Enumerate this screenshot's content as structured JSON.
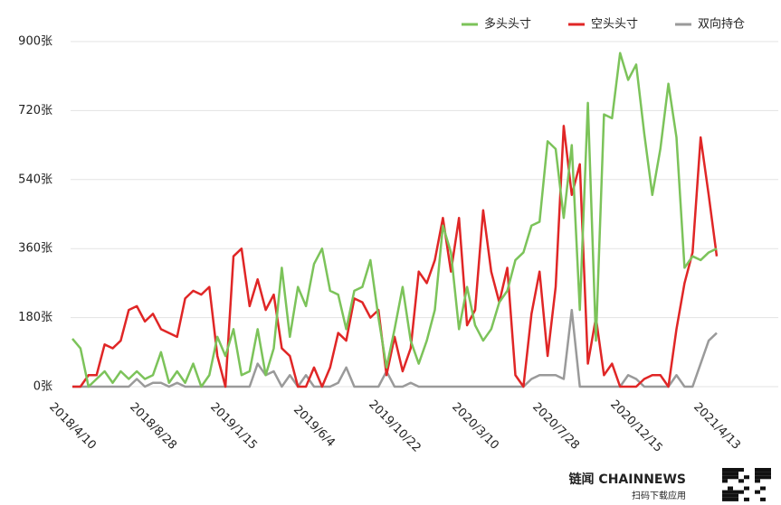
{
  "chart_data": {
    "type": "line",
    "categories": [
      "2018/4/10",
      null,
      null,
      null,
      null,
      null,
      null,
      null,
      null,
      null,
      "2018/8/28",
      null,
      null,
      null,
      null,
      null,
      null,
      null,
      null,
      null,
      "2019/1/15",
      null,
      null,
      null,
      null,
      null,
      null,
      null,
      null,
      null,
      "2019/6/4",
      null,
      null,
      null,
      null,
      null,
      null,
      null,
      null,
      null,
      "2019/10/22",
      null,
      null,
      null,
      null,
      null,
      null,
      null,
      null,
      null,
      "2020/3/10",
      null,
      null,
      null,
      null,
      null,
      null,
      null,
      null,
      null,
      "2020/7/28",
      null,
      null,
      null,
      null,
      null,
      null,
      null,
      null,
      null,
      "2020/12/15",
      null,
      null,
      null,
      null,
      null,
      null,
      null,
      null,
      null,
      "2021/4/13"
    ],
    "series": [
      {
        "name": "多头头寸",
        "color": "#7cc35a",
        "values": [
          125,
          100,
          0,
          20,
          40,
          10,
          40,
          20,
          40,
          20,
          30,
          90,
          10,
          40,
          10,
          60,
          0,
          30,
          130,
          80,
          150,
          30,
          40,
          150,
          30,
          100,
          310,
          130,
          260,
          210,
          320,
          360,
          250,
          240,
          150,
          250,
          260,
          330,
          180,
          50,
          150,
          260,
          120,
          60,
          120,
          200,
          420,
          350,
          150,
          260,
          160,
          120,
          150,
          220,
          250,
          330,
          350,
          420,
          430,
          640,
          620,
          440,
          630,
          200,
          740,
          120,
          710,
          700,
          870,
          800,
          840,
          660,
          500,
          620,
          790,
          650,
          310,
          340,
          330,
          350,
          360
        ]
      },
      {
        "name": "空头头寸",
        "color": "#e02626",
        "values": [
          0,
          0,
          30,
          30,
          110,
          100,
          120,
          200,
          210,
          170,
          190,
          150,
          140,
          130,
          230,
          250,
          240,
          260,
          80,
          0,
          340,
          360,
          210,
          280,
          200,
          240,
          100,
          80,
          0,
          0,
          50,
          0,
          50,
          140,
          120,
          230,
          220,
          180,
          200,
          30,
          130,
          40,
          100,
          300,
          270,
          330,
          440,
          300,
          440,
          160,
          200,
          460,
          300,
          220,
          310,
          30,
          0,
          190,
          300,
          80,
          260,
          680,
          500,
          580,
          60,
          180,
          30,
          60,
          0,
          0,
          0,
          20,
          30,
          30,
          0,
          150,
          270,
          350,
          650,
          500,
          340
        ]
      },
      {
        "name": "双向持仓",
        "color": "#9a9a9a",
        "values": [
          0,
          0,
          0,
          0,
          0,
          0,
          0,
          0,
          20,
          0,
          10,
          10,
          0,
          10,
          0,
          0,
          0,
          0,
          0,
          0,
          0,
          0,
          0,
          60,
          30,
          40,
          0,
          30,
          0,
          30,
          0,
          0,
          0,
          10,
          50,
          0,
          0,
          0,
          0,
          40,
          0,
          0,
          10,
          0,
          0,
          0,
          0,
          0,
          0,
          0,
          0,
          0,
          0,
          0,
          0,
          0,
          0,
          20,
          30,
          30,
          30,
          20,
          200,
          0,
          0,
          0,
          0,
          0,
          0,
          30,
          20,
          0,
          0,
          0,
          0,
          30,
          0,
          0,
          60,
          120,
          140
        ]
      }
    ],
    "ylim": [
      0,
      900
    ],
    "yticks": [
      {
        "value": 0,
        "label": "0张"
      },
      {
        "value": 180,
        "label": "180张"
      },
      {
        "value": 360,
        "label": "360张"
      },
      {
        "value": 540,
        "label": "540张"
      },
      {
        "value": 720,
        "label": "720张"
      },
      {
        "value": 900,
        "label": "900张"
      }
    ],
    "grid": true,
    "legend": "top-right"
  },
  "brand": {
    "name": "链闻 CHAINNEWS",
    "slogan": "扫码下载应用"
  }
}
